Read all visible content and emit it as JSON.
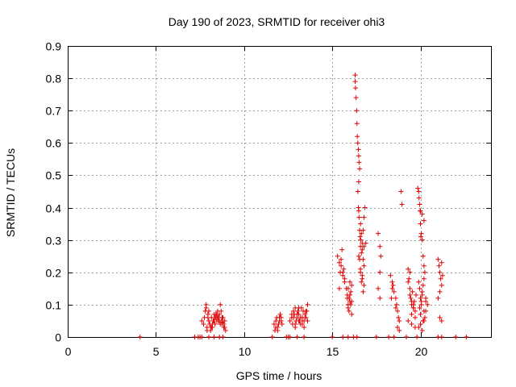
{
  "chart_data": {
    "type": "scatter",
    "title": "Day 190 of 2023, SRMTID for receiver ohi3",
    "xlabel": "GPS time / hours",
    "ylabel": "SRMTID / TECUs",
    "xlim": [
      0,
      24
    ],
    "ylim": [
      0,
      0.9
    ],
    "xticks": [
      0,
      5,
      10,
      15,
      20
    ],
    "yticks": [
      0,
      0.1,
      0.2,
      0.3,
      0.4,
      0.5,
      0.6,
      0.7,
      0.8,
      0.9
    ],
    "grid": true,
    "marker": "plus",
    "colors": {
      "series": "#e00000"
    },
    "series": [
      {
        "name": "ohi3",
        "x": [
          4.1,
          7.2,
          7.4,
          7.5,
          7.6,
          7.7,
          7.75,
          7.8,
          7.85,
          7.9,
          7.95,
          8.0,
          8.05,
          8.1,
          8.15,
          8.2,
          8.25,
          8.3,
          8.35,
          8.4,
          8.45,
          8.5,
          8.55,
          8.6,
          8.65,
          8.7,
          8.75,
          8.8,
          8.85,
          8.9,
          8.95,
          7.85,
          7.95,
          8.05,
          8.15,
          8.25,
          8.35,
          8.45,
          8.55,
          8.65,
          8.75,
          8.85,
          7.9,
          8.0,
          8.1,
          8.2,
          8.3,
          8.4,
          8.5,
          8.6,
          8.7,
          8.8,
          8.9,
          7.6,
          8.0,
          8.3,
          8.6,
          8.8,
          11.6,
          11.7,
          11.75,
          11.8,
          11.85,
          11.9,
          11.95,
          12.0,
          12.05,
          12.1,
          12.15,
          11.8,
          11.9,
          12.0,
          12.1,
          12.5,
          12.6,
          12.7,
          12.75,
          12.8,
          12.85,
          12.9,
          12.95,
          13.0,
          13.05,
          13.1,
          13.15,
          13.2,
          13.25,
          13.3,
          13.35,
          13.4,
          13.45,
          13.5,
          13.55,
          13.6,
          12.8,
          12.9,
          13.0,
          13.1,
          13.2,
          13.3,
          13.4,
          13.5,
          13.6,
          12.7,
          12.9,
          13.1,
          13.3,
          13.5,
          12.4,
          12.6,
          13.0,
          13.4,
          15.0,
          15.3,
          15.4,
          15.45,
          15.5,
          15.55,
          15.6,
          15.65,
          15.7,
          15.4,
          15.5,
          15.6,
          15.7,
          15.8,
          15.85,
          15.9,
          15.95,
          16.0,
          16.05,
          16.1,
          15.85,
          15.9,
          15.95,
          16.0,
          16.05,
          16.1,
          15.9,
          16.0,
          16.1,
          15.6,
          15.9,
          16.3,
          16.3,
          16.32,
          16.35,
          16.38,
          16.4,
          16.42,
          16.45,
          16.48,
          16.5,
          16.52,
          16.55,
          16.5,
          16.45,
          16.48,
          16.5,
          16.52,
          16.55,
          16.58,
          16.6,
          16.62,
          16.65,
          16.7,
          16.75,
          16.8,
          16.85,
          16.6,
          16.65,
          16.7,
          16.75,
          16.8,
          16.6,
          16.7,
          16.8,
          16.5,
          16.6,
          16.7,
          16.8,
          16.9,
          16.55,
          16.65,
          16.75,
          16.2,
          16.4,
          17.6,
          17.7,
          17.75,
          17.7,
          17.6,
          17.7,
          17.5,
          18.3,
          18.4,
          18.45,
          18.5,
          18.35,
          18.4,
          18.2,
          18.6,
          18.65,
          18.7,
          18.75,
          18.8,
          18.6,
          18.7,
          18.8,
          18.9,
          18.95,
          18.5,
          19.3,
          19.35,
          19.4,
          19.45,
          19.5,
          19.55,
          19.6,
          19.65,
          19.7,
          19.75,
          19.3,
          19.4,
          19.5,
          19.6,
          19.7,
          19.4,
          19.5,
          19.6,
          19.2,
          19.8,
          19.3,
          19.5,
          19.7,
          19.85,
          19.9,
          19.92,
          19.95,
          19.98,
          20.0,
          20.02,
          20.05,
          20.1,
          20.15,
          20.2,
          20.25,
          19.9,
          19.95,
          20.0,
          20.05,
          20.1,
          20.15,
          20.2,
          19.95,
          20.0,
          20.05,
          20.1,
          20.15,
          20.2,
          20.25,
          20.3,
          19.9,
          20.0,
          20.1,
          20.2,
          20.3,
          20.0,
          20.1,
          20.2,
          20.3,
          20.4,
          21.0,
          21.05,
          21.1,
          21.15,
          21.2,
          21.25,
          21.0,
          21.1,
          21.2,
          21.1,
          21.2,
          21.0,
          21.2,
          22.0,
          22.6
        ],
        "y": [
          0.0,
          0.0,
          0.0,
          0.0,
          0.05,
          0.04,
          0.06,
          0.08,
          0.1,
          0.03,
          0.07,
          0.05,
          0.04,
          0.02,
          0.06,
          0.03,
          0.05,
          0.07,
          0.04,
          0.06,
          0.05,
          0.08,
          0.06,
          0.07,
          0.1,
          0.05,
          0.04,
          0.06,
          0.03,
          0.05,
          0.02,
          0.09,
          0.06,
          0.04,
          0.03,
          0.05,
          0.06,
          0.07,
          0.05,
          0.04,
          0.06,
          0.04,
          0.02,
          0.08,
          0.03,
          0.04,
          0.05,
          0.07,
          0.06,
          0.05,
          0.08,
          0.05,
          0.03,
          0.0,
          0.0,
          0.0,
          0.0,
          0.0,
          0.0,
          0.04,
          0.02,
          0.05,
          0.06,
          0.03,
          0.04,
          0.06,
          0.07,
          0.05,
          0.04,
          0.03,
          0.02,
          0.05,
          0.06,
          0.0,
          0.05,
          0.06,
          0.04,
          0.08,
          0.07,
          0.09,
          0.05,
          0.06,
          0.08,
          0.07,
          0.05,
          0.06,
          0.09,
          0.04,
          0.08,
          0.05,
          0.07,
          0.06,
          0.08,
          0.1,
          0.06,
          0.04,
          0.07,
          0.05,
          0.04,
          0.06,
          0.03,
          0.08,
          0.05,
          0.07,
          0.03,
          0.09,
          0.05,
          0.06,
          0.0,
          0.0,
          0.0,
          0.0,
          0.0,
          0.25,
          0.23,
          0.2,
          0.22,
          0.27,
          0.19,
          0.21,
          0.18,
          0.15,
          0.24,
          0.2,
          0.17,
          0.15,
          0.12,
          0.1,
          0.08,
          0.11,
          0.14,
          0.16,
          0.13,
          0.09,
          0.12,
          0.17,
          0.1,
          0.07,
          0.15,
          0.13,
          0.11,
          0.0,
          0.0,
          0.81,
          0.79,
          0.77,
          0.74,
          0.7,
          0.66,
          0.62,
          0.6,
          0.58,
          0.56,
          0.54,
          0.52,
          0.48,
          0.45,
          0.4,
          0.39,
          0.37,
          0.33,
          0.31,
          0.28,
          0.3,
          0.26,
          0.29,
          0.33,
          0.37,
          0.4,
          0.35,
          0.32,
          0.27,
          0.24,
          0.22,
          0.2,
          0.18,
          0.16,
          0.25,
          0.21,
          0.19,
          0.28,
          0.29,
          0.24,
          0.17,
          0.14,
          0.0,
          0.0,
          0.32,
          0.28,
          0.25,
          0.2,
          0.15,
          0.12,
          0.0,
          0.19,
          0.17,
          0.16,
          0.14,
          0.12,
          0.15,
          0.0,
          0.12,
          0.1,
          0.08,
          0.06,
          0.05,
          0.09,
          0.03,
          0.02,
          0.45,
          0.41,
          0.0,
          0.21,
          0.18,
          0.15,
          0.12,
          0.1,
          0.14,
          0.09,
          0.11,
          0.08,
          0.13,
          0.17,
          0.13,
          0.07,
          0.1,
          0.06,
          0.2,
          0.11,
          0.09,
          0.0,
          0.0,
          0.05,
          0.04,
          0.03,
          0.46,
          0.45,
          0.43,
          0.41,
          0.39,
          0.35,
          0.31,
          0.32,
          0.3,
          0.25,
          0.22,
          0.2,
          0.17,
          0.15,
          0.12,
          0.1,
          0.14,
          0.16,
          0.18,
          0.09,
          0.07,
          0.11,
          0.13,
          0.05,
          0.08,
          0.06,
          0.12,
          0.03,
          0.04,
          0.02,
          0.05,
          0.08,
          0.39,
          0.38,
          0.36,
          0.11,
          0.1,
          0.24,
          0.22,
          0.2,
          0.18,
          0.16,
          0.19,
          0.12,
          0.14,
          0.23,
          0.06,
          0.05,
          0.0,
          0.0,
          0.0,
          0.0
        ]
      }
    ]
  }
}
